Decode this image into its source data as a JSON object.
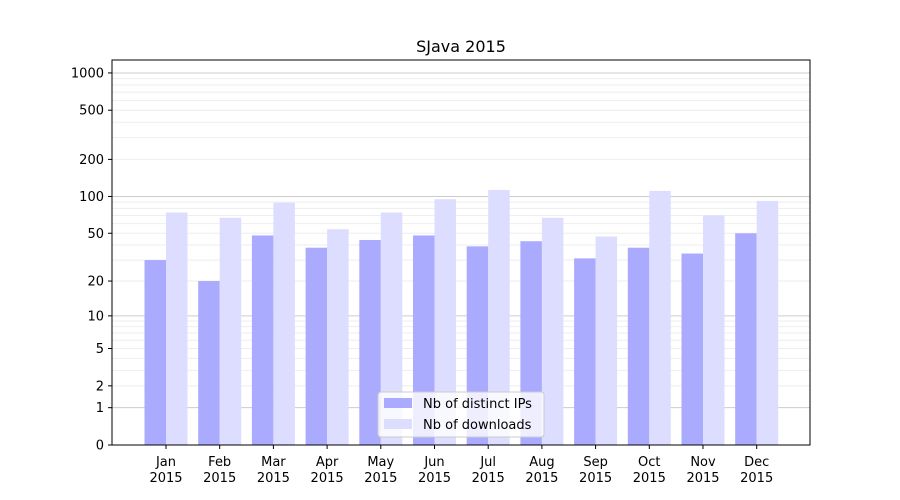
{
  "chart_data": {
    "type": "bar",
    "title": "SJava 2015",
    "xlabel": "",
    "ylabel": "",
    "yscale": "log(1+y)",
    "ylim": [
      0,
      1200
    ],
    "yticks": [
      0,
      1,
      2,
      5,
      10,
      20,
      50,
      100,
      200,
      500,
      1000
    ],
    "grid": true,
    "legend_position": "bottom-center",
    "categories": [
      "Jan\n2015",
      "Feb\n2015",
      "Mar\n2015",
      "Apr\n2015",
      "May\n2015",
      "Jun\n2015",
      "Jul\n2015",
      "Aug\n2015",
      "Sep\n2015",
      "Oct\n2015",
      "Nov\n2015",
      "Dec\n2015"
    ],
    "series": [
      {
        "name": "Nb of distinct IPs",
        "color": "#aaaaff",
        "values": [
          30,
          20,
          48,
          38,
          44,
          48,
          39,
          43,
          31,
          38,
          34,
          50
        ]
      },
      {
        "name": "Nb of downloads",
        "color": "#ddddff",
        "values": [
          74,
          67,
          89,
          54,
          74,
          95,
          113,
          67,
          47,
          111,
          70,
          92
        ]
      }
    ]
  }
}
